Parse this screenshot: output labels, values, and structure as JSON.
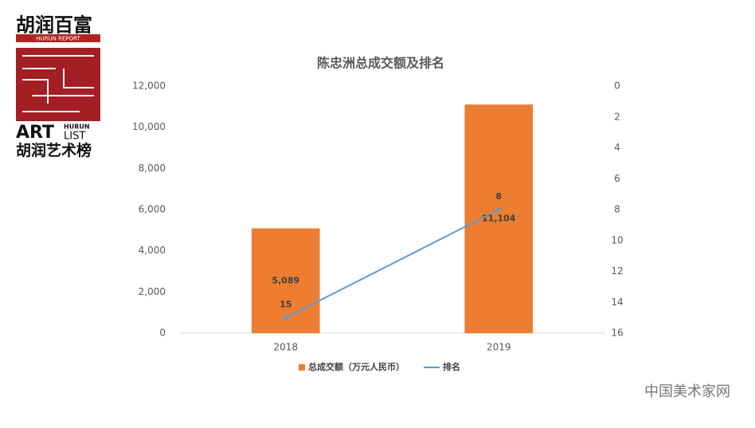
{
  "logo": {
    "top": "胡润百富",
    "report": "HURUN REPORT",
    "art": "ART",
    "hurun": "HURUN",
    "list": "LIST",
    "bottom": "胡润艺术榜"
  },
  "watermark": "中国美术家网",
  "chart_data": {
    "type": "bar",
    "title": "陈忠洲总成交额及排名",
    "categories": [
      "2018",
      "2019"
    ],
    "series": [
      {
        "name": "总成交额（万元人民币）",
        "type": "bar",
        "color": "#ed7d31",
        "values": [
          5089,
          11104
        ],
        "value_labels": [
          "5,089",
          "11,104"
        ]
      },
      {
        "name": "排名",
        "type": "line",
        "axis": "y2",
        "color": "#5b9bd5",
        "values": [
          15,
          8
        ]
      }
    ],
    "ylim": [
      0,
      12000
    ],
    "yticks": [
      0,
      {
        "value": 2000,
        "label": "2,000"
      },
      {
        "value": 4000,
        "label": "4,000"
      },
      {
        "value": 6000,
        "label": "6,000"
      },
      {
        "value": 8000,
        "label": "8,000"
      },
      {
        "value": 10000,
        "label": "10,000"
      },
      {
        "value": 12000,
        "label": "12,000"
      }
    ],
    "y2lim": [
      0,
      16
    ],
    "y2ticks": [
      0,
      2,
      4,
      6,
      8,
      10,
      12,
      14,
      16
    ],
    "y2_reversed": true,
    "grid": false,
    "legend": "bottom"
  }
}
